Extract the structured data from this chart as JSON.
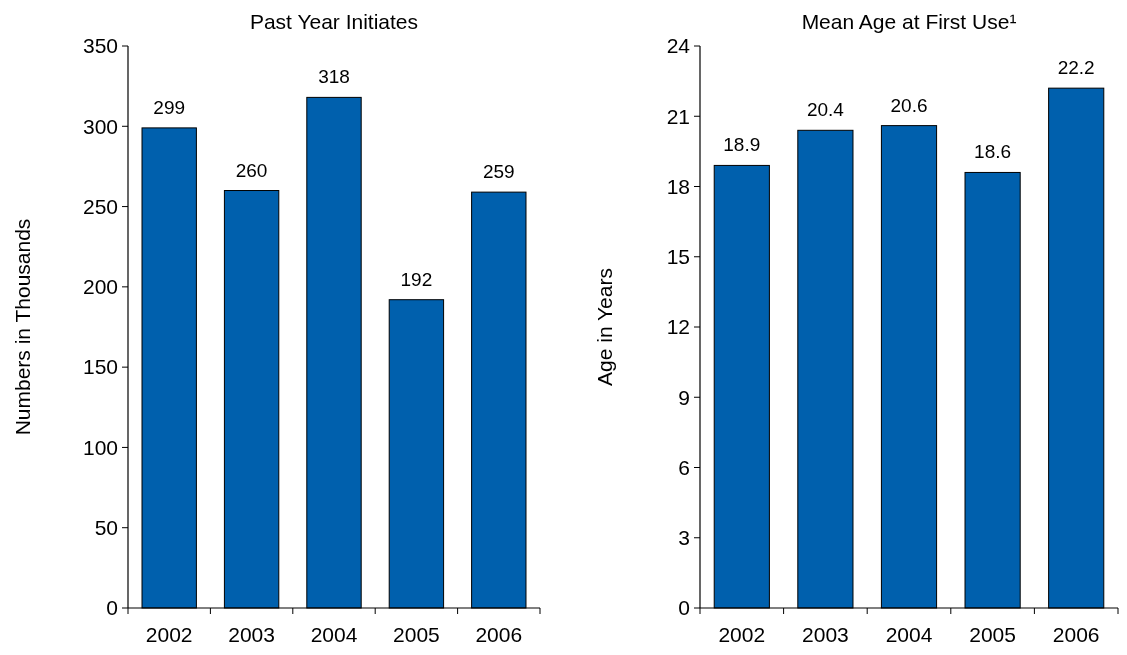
{
  "chart_data": [
    {
      "type": "bar",
      "title": "Past Year Initiates",
      "ylabel": "Numbers in Thousands",
      "categories": [
        "2002",
        "2003",
        "2004",
        "2005",
        "2006"
      ],
      "values": [
        299,
        260,
        318,
        192,
        259
      ],
      "color": "#0060ad",
      "ylim": [
        0,
        350
      ],
      "yticks": [
        0,
        50,
        100,
        150,
        200,
        250,
        300,
        350
      ],
      "data_labels": true
    },
    {
      "type": "bar",
      "title": "Mean Age at First Use¹",
      "ylabel": "Age in Years",
      "categories": [
        "2002",
        "2003",
        "2004",
        "2005",
        "2006"
      ],
      "values": [
        18.9,
        20.4,
        20.6,
        18.6,
        22.2
      ],
      "color": "#0060ad",
      "ylim": [
        0,
        24
      ],
      "yticks": [
        0,
        3,
        6,
        9,
        12,
        15,
        18,
        21,
        24
      ],
      "data_labels": true
    }
  ]
}
